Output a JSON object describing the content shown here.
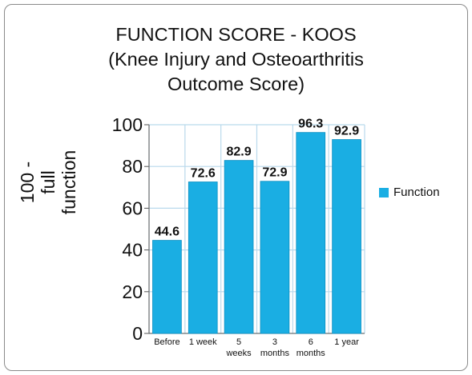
{
  "colors": {
    "bar": "#1aaee3",
    "bar_edge": "#0b8fc2",
    "grid": "#b9d9ec",
    "axis": "#555555",
    "text": "#111111"
  },
  "chart_data": {
    "type": "bar",
    "title": [
      "FUNCTION SCORE - KOOS",
      "(Knee Injury and Osteoarthritis",
      "Outcome Score)"
    ],
    "ylabel": [
      "100 -",
      "full",
      "function"
    ],
    "xlabel": "",
    "categories": [
      [
        "Before"
      ],
      [
        "1 week"
      ],
      [
        "5",
        "weeks"
      ],
      [
        "3",
        "months"
      ],
      [
        "6",
        "months"
      ],
      [
        "1 year"
      ]
    ],
    "series": [
      {
        "name": "Function",
        "values": [
          44.6,
          72.6,
          82.9,
          72.9,
          96.3,
          92.9
        ]
      }
    ],
    "data_labels": [
      "44.6",
      "72.6",
      "82.9",
      "72.9",
      "96.3",
      "92.9"
    ],
    "ylim": [
      0,
      100
    ],
    "yticks": [
      "0",
      "20",
      "40",
      "60",
      "80",
      "100"
    ],
    "grid": true,
    "legend_position": "right"
  }
}
